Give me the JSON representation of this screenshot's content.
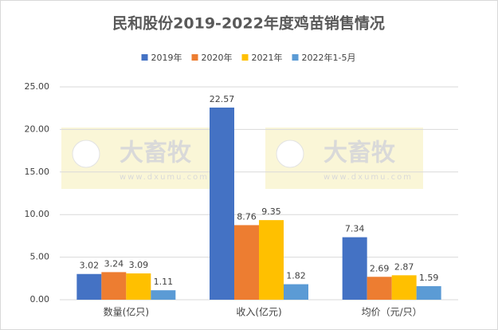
{
  "chart_data": {
    "type": "bar",
    "title": "民和股份2019-2022年度鸡苗销售情况",
    "categories": [
      "数量(亿只)",
      "收入(亿元)",
      "均价（元/只）"
    ],
    "series": [
      {
        "name": "2019年",
        "color": "#4472c4",
        "values": [
          3.02,
          22.57,
          7.34
        ]
      },
      {
        "name": "2020年",
        "color": "#ed7d31",
        "values": [
          3.24,
          8.76,
          2.69
        ]
      },
      {
        "name": "2021年",
        "color": "#ffc000",
        "values": [
          3.09,
          9.35,
          2.87
        ]
      },
      {
        "name": "2022年1-5月",
        "color": "#5b9bd5",
        "values": [
          1.11,
          1.82,
          1.59
        ]
      }
    ],
    "ylim": [
      0,
      25
    ],
    "yticks": [
      {
        "value": 0,
        "label": "0.00"
      },
      {
        "value": 5,
        "label": "5.00"
      },
      {
        "value": 10,
        "label": "10.00"
      },
      {
        "value": 15,
        "label": "15.00"
      },
      {
        "value": 20,
        "label": "20.00"
      },
      {
        "value": 25,
        "label": "25.00"
      }
    ],
    "grid": true,
    "legend": "top",
    "watermark": {
      "brand": "大畜牧",
      "url": "www.dxumu.com"
    }
  }
}
